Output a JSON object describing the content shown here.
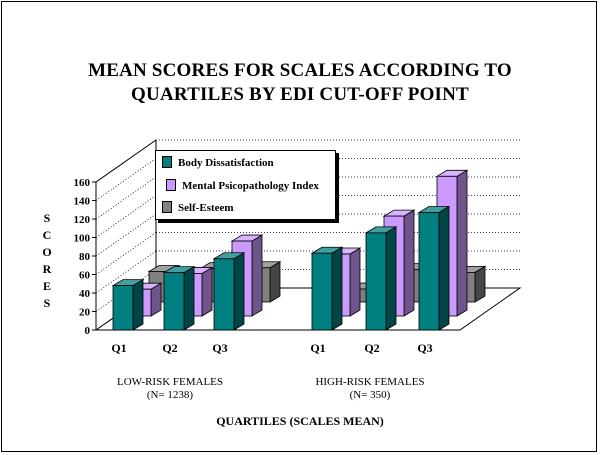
{
  "title_line1": "MEAN SCORES FOR SCALES ACCORDING TO",
  "title_line2": "QUARTILES BY EDI CUT-OFF POINT",
  "colors": {
    "body_dissatisfaction": "#008080",
    "mental_index": "#cc99ff",
    "self_esteem": "#808080"
  },
  "chart_data": {
    "type": "bar",
    "title": "MEAN SCORES FOR SCALES ACCORDING TO QUARTILES BY EDI CUT-OFF POINT",
    "ylabel": "SCORES",
    "xlabel": "QUARTILES (SCALES MEAN)",
    "ylim": [
      0,
      160
    ],
    "yticks": [
      0,
      20,
      40,
      60,
      80,
      100,
      120,
      140,
      160
    ],
    "grid": true,
    "legend_position": "top-left",
    "groups": [
      {
        "label_line1": "LOW-RISK FEMALES",
        "label_line2": "(N= 1238)",
        "categories": [
          "Q1",
          "Q2",
          "Q3"
        ]
      },
      {
        "label_line1": "HIGH-RISK FEMALES",
        "label_line2": "(N= 350)",
        "categories": [
          "Q1",
          "Q2",
          "Q3"
        ]
      }
    ],
    "categories": [
      "Q1",
      "Q2",
      "Q3",
      "Q1",
      "Q2",
      "Q3"
    ],
    "series": [
      {
        "name": "Body Dissatisfaction",
        "values": [
          48,
          62,
          77,
          83,
          105,
          127
        ]
      },
      {
        "name": "Mental Psicopathology Index",
        "values": [
          29,
          46,
          81,
          67,
          108,
          151
        ]
      },
      {
        "name": "Self-Esteem",
        "values": [
          33,
          36,
          37,
          14,
          35,
          32
        ]
      }
    ]
  }
}
